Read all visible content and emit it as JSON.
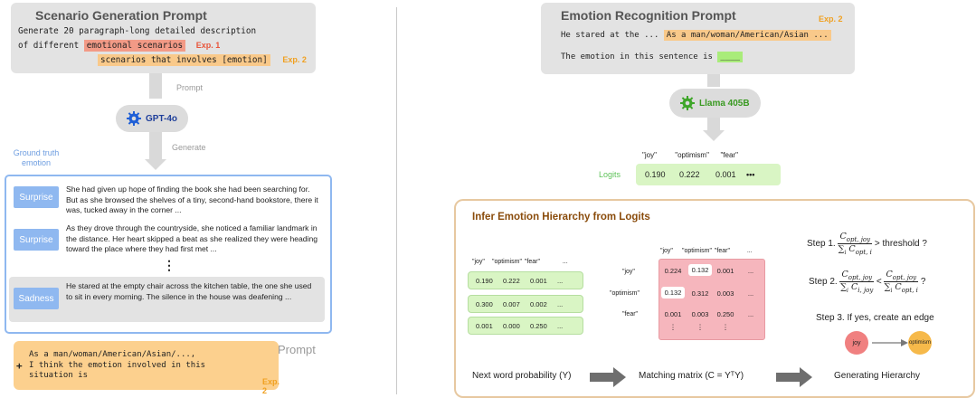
{
  "left": {
    "title": "Scenario Generation Prompt",
    "prompt_line1": "Generate 20 paragraph-long detailed description",
    "prompt_line2_prefix": "of different",
    "exp1_text": "emotional scenarios",
    "exp1_label": "Exp. 1",
    "exp2_text": "scenarios that involves [emotion]",
    "exp2_label": "Exp. 2",
    "arrow1_label": "Prompt",
    "model": "GPT-4o",
    "arrow2_label": "Generate",
    "ground_truth_label": "Ground truth\nemotion",
    "stories": [
      {
        "emotion": "Surprise",
        "text": "She had given up hope of finding the book she had been searching for. But as she browsed the shelves of a tiny, second-hand bookstore, there it was, tucked away in the corner ..."
      },
      {
        "emotion": "Surprise",
        "text": "As they drove through the countryside, she noticed a familiar landmark in the distance. Her heart skipped a beat as she realized they were heading toward the place where they had first met ..."
      },
      {
        "emotion": "Sadness",
        "text": "He stared at the empty chair across the kitchen table, the one she used to sit in every morning. The silence in the house was deafening ..."
      }
    ],
    "ellipsis": "⋮",
    "prompt2_label": "Prompt",
    "prompt2_line1": "As a man/woman/American/Asian/...,",
    "prompt2_plus": "+",
    "prompt2_line2": "I think the emotion involved in this",
    "prompt2_line3": "situation is",
    "prompt2_exp": "Exp. 2"
  },
  "right": {
    "title": "Emotion Recognition Prompt",
    "exp2_label": "Exp. 2",
    "line1_prefix": "He stared at the ...",
    "line1_hl": "As a man/woman/American/Asian ...",
    "line2_prefix": "The emotion in this sentence is",
    "line2_hl": "____",
    "model": "Llama 405B",
    "logits_label": "Logits",
    "logit_headers": [
      "\"joy\"",
      "\"optimism\"",
      "\"fear\""
    ],
    "logit_values": [
      "0.190",
      "0.222",
      "0.001"
    ],
    "logit_more": "•••"
  },
  "infer": {
    "title": "Infer Emotion Hierarchy from Logits",
    "prob_headers": [
      "\"joy\"",
      "\"optimism\"",
      "\"fear\"",
      "..."
    ],
    "prob_rows": [
      [
        "0.190",
        "0.222",
        "0.001",
        "..."
      ],
      [
        "0.300",
        "0.007",
        "0.002",
        "..."
      ],
      [
        "0.001",
        "0.000",
        "0.250",
        "..."
      ]
    ],
    "matrix_col_headers": [
      "\"joy\"",
      "\"optimism\"",
      "\"fear\"",
      "..."
    ],
    "matrix_row_headers": [
      "\"joy\"",
      "\"optimism\"",
      "\"fear\""
    ],
    "matrix_rows": [
      [
        "0.224",
        "0.132",
        "0.001",
        "..."
      ],
      [
        "0.132",
        "0.312",
        "0.003",
        "..."
      ],
      [
        "0.001",
        "0.003",
        "0.250",
        "..."
      ],
      [
        "⋮",
        "⋮",
        "⋮",
        ""
      ]
    ],
    "step1_label": "Step 1.",
    "step1_num": "C",
    "step1_num_sub": "opt, joy",
    "step1_den": "∑",
    "step1_den_sub": "i",
    "step1_den_c": "C",
    "step1_den_csub": "opt, i",
    "step1_tail": "> threshold ?",
    "step2_label": "Step 2.",
    "step2_left_num_sub": "opt, joy",
    "step2_left_den_csub": "i, joy",
    "step2_lt": "<",
    "step2_right_num_sub": "opt, joy",
    "step2_right_den_csub": "opt, i",
    "step2_tail": "?",
    "step3": "Step 3. If yes, create an edge",
    "node_joy": "joy",
    "node_optimism": "optimism",
    "bottom_left": "Next word probability (Y)",
    "bottom_mid": "Matching matrix (C = YᵀY)",
    "bottom_right": "Generating Hierarchy"
  },
  "colors": {
    "blue_border": "#8fb8f0",
    "green": "#a9ec7a",
    "pink": "#f6b6bd",
    "orange": "#fcd08e",
    "infer_border": "#e7c8a0"
  }
}
